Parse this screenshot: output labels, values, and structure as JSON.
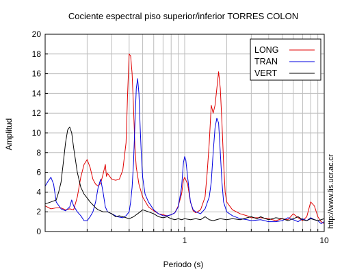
{
  "chart_data": {
    "type": "line",
    "title": "Cociente espectral piso superior/inferior  TORRES COLON",
    "xlabel": "Periodo (s)",
    "ylabel": "Amplitud",
    "xscale": "log",
    "xlim": [
      0.1,
      10
    ],
    "ylim": [
      0,
      20
    ],
    "xtick_labels": [
      {
        "value": 1,
        "label": "1"
      },
      {
        "value": 10,
        "label": "10"
      }
    ],
    "yticks": [
      0,
      2,
      4,
      6,
      8,
      10,
      12,
      14,
      16,
      18,
      20
    ],
    "grid": true,
    "legend_position": "top-right",
    "series": [
      {
        "name": "LONG",
        "color": "#e00000",
        "points": [
          [
            0.1,
            2.6
          ],
          [
            0.11,
            2.3
          ],
          [
            0.12,
            2.4
          ],
          [
            0.13,
            2.4
          ],
          [
            0.14,
            2.2
          ],
          [
            0.15,
            2.3
          ],
          [
            0.16,
            2.2
          ],
          [
            0.17,
            3.5
          ],
          [
            0.18,
            5.5
          ],
          [
            0.19,
            6.8
          ],
          [
            0.2,
            7.3
          ],
          [
            0.21,
            6.5
          ],
          [
            0.22,
            5.3
          ],
          [
            0.23,
            4.8
          ],
          [
            0.24,
            4.6
          ],
          [
            0.25,
            4.9
          ],
          [
            0.26,
            5.8
          ],
          [
            0.27,
            6.8
          ],
          [
            0.275,
            5.6
          ],
          [
            0.28,
            5.9
          ],
          [
            0.3,
            5.3
          ],
          [
            0.32,
            5.2
          ],
          [
            0.34,
            5.3
          ],
          [
            0.36,
            6.2
          ],
          [
            0.38,
            9.0
          ],
          [
            0.39,
            14.0
          ],
          [
            0.4,
            18.0
          ],
          [
            0.41,
            17.8
          ],
          [
            0.42,
            16.0
          ],
          [
            0.43,
            12.5
          ],
          [
            0.44,
            8.5
          ],
          [
            0.45,
            6.5
          ],
          [
            0.47,
            4.8
          ],
          [
            0.5,
            3.5
          ],
          [
            0.55,
            2.5
          ],
          [
            0.6,
            2.1
          ],
          [
            0.65,
            1.8
          ],
          [
            0.7,
            1.7
          ],
          [
            0.75,
            1.6
          ],
          [
            0.8,
            1.7
          ],
          [
            0.85,
            1.9
          ],
          [
            0.9,
            2.6
          ],
          [
            0.95,
            3.8
          ],
          [
            0.98,
            5.2
          ],
          [
            1.0,
            5.5
          ],
          [
            1.05,
            4.8
          ],
          [
            1.1,
            3.0
          ],
          [
            1.15,
            2.1
          ],
          [
            1.2,
            1.9
          ],
          [
            1.3,
            2.2
          ],
          [
            1.4,
            3.5
          ],
          [
            1.45,
            6.0
          ],
          [
            1.5,
            9.0
          ],
          [
            1.55,
            12.8
          ],
          [
            1.6,
            12.0
          ],
          [
            1.65,
            12.8
          ],
          [
            1.7,
            14.5
          ],
          [
            1.75,
            16.2
          ],
          [
            1.8,
            14.5
          ],
          [
            1.85,
            11.0
          ],
          [
            1.9,
            7.0
          ],
          [
            1.95,
            4.0
          ],
          [
            2.0,
            3.0
          ],
          [
            2.2,
            2.2
          ],
          [
            2.5,
            1.8
          ],
          [
            2.8,
            1.6
          ],
          [
            3.0,
            1.4
          ],
          [
            3.5,
            1.4
          ],
          [
            4.0,
            1.3
          ],
          [
            4.5,
            1.1
          ],
          [
            5.0,
            1.3
          ],
          [
            5.5,
            1.2
          ],
          [
            6.0,
            1.8
          ],
          [
            6.5,
            1.4
          ],
          [
            7.0,
            1.1
          ],
          [
            7.5,
            1.5
          ],
          [
            8.0,
            3.0
          ],
          [
            8.5,
            2.6
          ],
          [
            9.0,
            1.5
          ],
          [
            9.5,
            1.0
          ],
          [
            10.0,
            0.8
          ]
        ]
      },
      {
        "name": "TRAN",
        "color": "#0000e0",
        "points": [
          [
            0.1,
            4.6
          ],
          [
            0.105,
            5.1
          ],
          [
            0.11,
            5.5
          ],
          [
            0.115,
            4.8
          ],
          [
            0.12,
            3.0
          ],
          [
            0.13,
            2.3
          ],
          [
            0.14,
            2.1
          ],
          [
            0.15,
            2.5
          ],
          [
            0.155,
            3.2
          ],
          [
            0.16,
            2.6
          ],
          [
            0.17,
            2.0
          ],
          [
            0.18,
            1.6
          ],
          [
            0.19,
            1.1
          ],
          [
            0.2,
            1.1
          ],
          [
            0.21,
            1.5
          ],
          [
            0.22,
            2.0
          ],
          [
            0.23,
            3.0
          ],
          [
            0.24,
            4.5
          ],
          [
            0.25,
            5.3
          ],
          [
            0.26,
            4.0
          ],
          [
            0.27,
            2.5
          ],
          [
            0.28,
            2.0
          ],
          [
            0.3,
            1.8
          ],
          [
            0.33,
            1.5
          ],
          [
            0.36,
            1.4
          ],
          [
            0.38,
            1.6
          ],
          [
            0.4,
            2.0
          ],
          [
            0.41,
            3.0
          ],
          [
            0.42,
            4.5
          ],
          [
            0.43,
            7.0
          ],
          [
            0.44,
            11.0
          ],
          [
            0.45,
            14.5
          ],
          [
            0.46,
            15.5
          ],
          [
            0.47,
            14.0
          ],
          [
            0.48,
            10.5
          ],
          [
            0.49,
            7.5
          ],
          [
            0.5,
            5.5
          ],
          [
            0.52,
            3.8
          ],
          [
            0.55,
            3.0
          ],
          [
            0.6,
            2.2
          ],
          [
            0.65,
            1.8
          ],
          [
            0.7,
            1.6
          ],
          [
            0.75,
            1.6
          ],
          [
            0.8,
            1.7
          ],
          [
            0.85,
            1.9
          ],
          [
            0.9,
            2.5
          ],
          [
            0.95,
            4.5
          ],
          [
            0.98,
            7.0
          ],
          [
            1.0,
            7.6
          ],
          [
            1.02,
            7.2
          ],
          [
            1.05,
            5.5
          ],
          [
            1.1,
            3.0
          ],
          [
            1.15,
            2.2
          ],
          [
            1.2,
            2.0
          ],
          [
            1.3,
            1.8
          ],
          [
            1.4,
            2.3
          ],
          [
            1.5,
            3.5
          ],
          [
            1.55,
            5.0
          ],
          [
            1.6,
            8.0
          ],
          [
            1.65,
            10.5
          ],
          [
            1.7,
            11.5
          ],
          [
            1.75,
            11.0
          ],
          [
            1.8,
            8.0
          ],
          [
            1.85,
            5.0
          ],
          [
            1.9,
            3.0
          ],
          [
            2.0,
            2.0
          ],
          [
            2.2,
            1.6
          ],
          [
            2.5,
            1.3
          ],
          [
            2.8,
            1.2
          ],
          [
            3.0,
            1.1
          ],
          [
            3.5,
            1.2
          ],
          [
            4.0,
            1.0
          ],
          [
            4.5,
            1.0
          ],
          [
            5.0,
            1.1
          ],
          [
            5.5,
            1.4
          ],
          [
            6.0,
            1.2
          ],
          [
            6.5,
            1.0
          ],
          [
            7.0,
            1.3
          ],
          [
            7.5,
            1.1
          ],
          [
            8.0,
            1.4
          ],
          [
            8.5,
            1.2
          ],
          [
            9.0,
            1.1
          ],
          [
            9.5,
            0.8
          ],
          [
            10.0,
            1.0
          ]
        ]
      },
      {
        "name": "VERT",
        "color": "#000000",
        "points": [
          [
            0.1,
            2.8
          ],
          [
            0.11,
            3.0
          ],
          [
            0.12,
            3.2
          ],
          [
            0.125,
            4.0
          ],
          [
            0.13,
            5.0
          ],
          [
            0.135,
            7.0
          ],
          [
            0.14,
            9.0
          ],
          [
            0.145,
            10.3
          ],
          [
            0.15,
            10.6
          ],
          [
            0.155,
            10.0
          ],
          [
            0.16,
            8.5
          ],
          [
            0.17,
            6.0
          ],
          [
            0.18,
            4.5
          ],
          [
            0.19,
            3.8
          ],
          [
            0.2,
            3.4
          ],
          [
            0.21,
            3.0
          ],
          [
            0.22,
            2.7
          ],
          [
            0.23,
            2.4
          ],
          [
            0.24,
            2.2
          ],
          [
            0.26,
            2.0
          ],
          [
            0.28,
            2.0
          ],
          [
            0.3,
            1.8
          ],
          [
            0.32,
            1.5
          ],
          [
            0.34,
            1.6
          ],
          [
            0.36,
            1.5
          ],
          [
            0.38,
            1.4
          ],
          [
            0.4,
            1.3
          ],
          [
            0.43,
            1.5
          ],
          [
            0.46,
            1.8
          ],
          [
            0.5,
            2.2
          ],
          [
            0.55,
            2.0
          ],
          [
            0.6,
            1.8
          ],
          [
            0.65,
            1.5
          ],
          [
            0.7,
            1.4
          ],
          [
            0.75,
            1.5
          ],
          [
            0.8,
            1.3
          ],
          [
            0.85,
            1.2
          ],
          [
            0.9,
            1.3
          ],
          [
            0.95,
            1.2
          ],
          [
            1.0,
            1.3
          ],
          [
            1.1,
            1.2
          ],
          [
            1.2,
            1.3
          ],
          [
            1.3,
            1.2
          ],
          [
            1.4,
            1.5
          ],
          [
            1.5,
            1.2
          ],
          [
            1.6,
            1.1
          ],
          [
            1.8,
            1.3
          ],
          [
            2.0,
            1.2
          ],
          [
            2.2,
            1.3
          ],
          [
            2.5,
            1.2
          ],
          [
            2.8,
            1.4
          ],
          [
            3.0,
            1.5
          ],
          [
            3.3,
            1.3
          ],
          [
            3.5,
            1.5
          ],
          [
            3.8,
            1.3
          ],
          [
            4.0,
            1.2
          ],
          [
            4.5,
            1.4
          ],
          [
            5.0,
            1.3
          ],
          [
            5.5,
            1.1
          ],
          [
            6.0,
            1.3
          ],
          [
            6.5,
            1.5
          ],
          [
            7.0,
            1.2
          ],
          [
            7.5,
            1.1
          ],
          [
            8.0,
            1.3
          ],
          [
            8.5,
            1.2
          ],
          [
            9.0,
            1.1
          ],
          [
            9.5,
            1.2
          ],
          [
            10.0,
            1.3
          ]
        ]
      }
    ]
  },
  "side_url": "http://www.lis.ucr.ac.cr"
}
